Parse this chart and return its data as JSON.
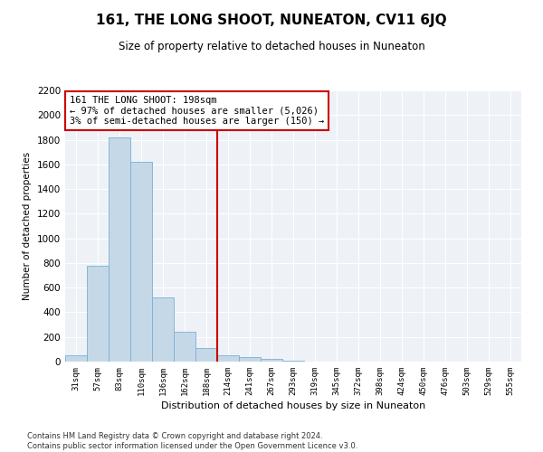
{
  "title": "161, THE LONG SHOOT, NUNEATON, CV11 6JQ",
  "subtitle": "Size of property relative to detached houses in Nuneaton",
  "xlabel": "Distribution of detached houses by size in Nuneaton",
  "ylabel": "Number of detached properties",
  "bar_color": "#c5d8e8",
  "bar_edge_color": "#7bafd4",
  "categories": [
    "31sqm",
    "57sqm",
    "83sqm",
    "110sqm",
    "136sqm",
    "162sqm",
    "188sqm",
    "214sqm",
    "241sqm",
    "267sqm",
    "293sqm",
    "319sqm",
    "345sqm",
    "372sqm",
    "398sqm",
    "424sqm",
    "450sqm",
    "476sqm",
    "503sqm",
    "529sqm",
    "555sqm"
  ],
  "values": [
    50,
    780,
    1820,
    1620,
    520,
    240,
    110,
    55,
    35,
    20,
    5,
    2,
    1,
    0,
    0,
    0,
    0,
    0,
    0,
    0,
    0
  ],
  "property_line_x": 6.5,
  "annotation_text": "161 THE LONG SHOOT: 198sqm\n← 97% of detached houses are smaller (5,026)\n3% of semi-detached houses are larger (150) →",
  "annotation_box_color": "#ffffff",
  "annotation_box_edge": "#cc0000",
  "vline_color": "#cc0000",
  "footer_text": "Contains HM Land Registry data © Crown copyright and database right 2024.\nContains public sector information licensed under the Open Government Licence v3.0.",
  "ylim": [
    0,
    2200
  ],
  "plot_bg_color": "#eef2f7"
}
